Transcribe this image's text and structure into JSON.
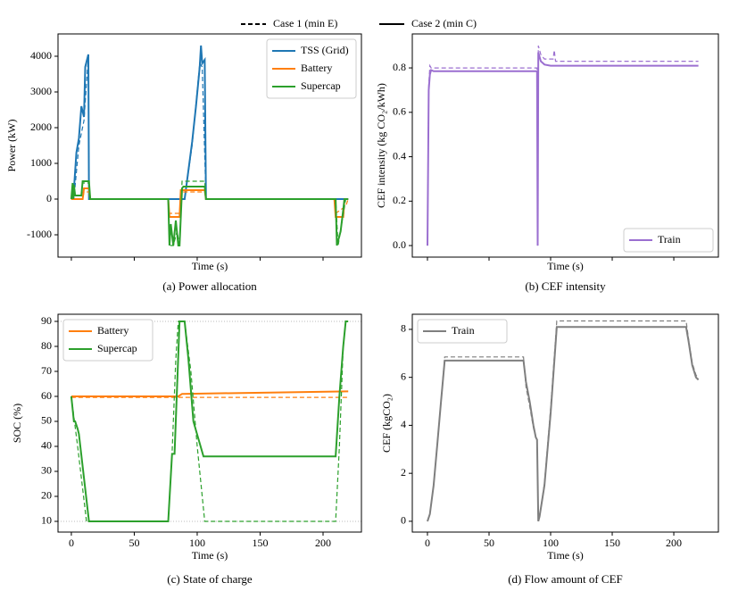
{
  "legend": [
    {
      "label": "Case 1 (min E)",
      "style": "dashed"
    },
    {
      "label": "Case 2 (min C)",
      "style": "solid"
    }
  ],
  "chart_data": [
    {
      "type": "line",
      "caption": "(a) Power allocation",
      "x_label": "Time (s)",
      "y_label": "Power (kW)",
      "xlim": [
        -10.6,
        230.5
      ],
      "xticks": [
        0,
        50,
        100,
        150,
        200
      ],
      "xtick_labels": false,
      "ylim": [
        -1625,
        4625
      ],
      "yticks": [
        -1000,
        0,
        1000,
        2000,
        3000,
        4000
      ],
      "legend_loc": "upper right",
      "series": [
        {
          "name": "TSS (Grid)",
          "color": "#1f77b4",
          "lines": [
            {
              "style": "solid",
              "x": [
                0,
                1.5,
                4,
                6,
                8,
                10,
                11,
                13.5,
                14,
                90,
                93,
                96,
                99,
                102,
                103,
                104,
                106,
                107,
                220
              ],
              "values": [
                0,
                0,
                1300,
                1700,
                2600,
                2300,
                3700,
                4050,
                0,
                0,
                800,
                1600,
                2600,
                3700,
                4300,
                3800,
                3900,
                0,
                0
              ]
            },
            {
              "style": "dashed",
              "x": [
                0,
                2,
                6,
                10,
                13.5,
                14,
                90,
                96,
                102,
                104,
                107,
                220
              ],
              "values": [
                0,
                0,
                1500,
                2200,
                4000,
                0,
                0,
                1500,
                3800,
                3700,
                0,
                0
              ]
            }
          ]
        },
        {
          "name": "Battery",
          "color": "#ff7f0e",
          "lines": [
            {
              "style": "solid",
              "x": [
                0,
                9,
                10,
                14,
                15,
                77,
                78,
                86,
                87,
                106,
                107,
                209,
                210,
                216,
                217,
                220
              ],
              "values": [
                0,
                0,
                300,
                300,
                0,
                0,
                -500,
                -500,
                250,
                250,
                0,
                0,
                -500,
                -500,
                0,
                0
              ]
            },
            {
              "style": "dashed",
              "x": [
                0,
                9,
                10,
                14,
                15,
                77,
                78,
                86,
                87,
                106,
                107,
                209,
                210,
                218,
                220
              ],
              "values": [
                0,
                0,
                200,
                200,
                0,
                0,
                -400,
                -400,
                200,
                200,
                0,
                0,
                -400,
                -200,
                0
              ]
            }
          ]
        },
        {
          "name": "Supercap",
          "color": "#2ca02c",
          "lines": [
            {
              "style": "solid",
              "x": [
                0,
                1,
                1.5,
                2,
                3,
                8,
                9,
                14,
                15,
                77,
                78,
                79,
                81,
                83,
                85,
                86,
                88,
                89,
                106,
                107,
                210,
                211,
                214,
                216,
                217,
                220
              ],
              "values": [
                0,
                450,
                0,
                400,
                100,
                100,
                500,
                500,
                0,
                0,
                -1300,
                -700,
                -1300,
                -600,
                -1300,
                -1300,
                300,
                350,
                350,
                0,
                0,
                -1300,
                -900,
                -300,
                0,
                0
              ]
            },
            {
              "style": "dashed",
              "x": [
                0,
                1,
                2,
                8,
                9,
                14,
                15,
                77,
                78,
                81,
                84,
                86,
                88,
                106,
                107,
                210,
                212,
                218,
                220
              ],
              "values": [
                0,
                400,
                100,
                100,
                450,
                450,
                0,
                0,
                -1300,
                -1300,
                -900,
                -1300,
                500,
                500,
                0,
                0,
                -1300,
                0,
                0
              ]
            }
          ]
        }
      ]
    },
    {
      "type": "line",
      "caption": "(b) CEF intensity",
      "x_label": "Time (s)",
      "y_label": "CEF intensity (kg CO₂/kWh)",
      "xlim": [
        -12.3,
        236.2
      ],
      "xticks": [
        0,
        50,
        100,
        150,
        200
      ],
      "xtick_labels": false,
      "ylim": [
        -0.052,
        0.953
      ],
      "yticks": [
        {
          "value": 0,
          "label": "0.0"
        },
        0.2,
        0.4,
        0.6,
        0.8
      ],
      "legend_loc": "lower right",
      "series": [
        {
          "name": "Train",
          "color": "#9b6fd0",
          "lines": [
            {
              "style": "solid",
              "x": [
                0,
                1,
                2,
                3,
                5,
                7,
                89,
                89.5,
                90,
                92,
                95,
                100,
                105,
                220
              ],
              "values": [
                0,
                0.7,
                0.77,
                0.79,
                0.785,
                0.785,
                0.785,
                0,
                0.87,
                0.83,
                0.815,
                0.81,
                0.81,
                0.81
              ]
            },
            {
              "style": "dashed",
              "x": [
                0,
                1,
                2,
                3,
                5,
                7,
                89,
                89.5,
                90,
                92,
                95,
                102,
                103,
                104,
                220
              ],
              "values": [
                0,
                0.72,
                0.81,
                0.8,
                0.8,
                0.8,
                0.8,
                0,
                0.9,
                0.86,
                0.84,
                0.84,
                0.88,
                0.83,
                0.83
              ]
            }
          ]
        }
      ]
    },
    {
      "type": "line",
      "caption": "(c) State of charge",
      "x_label": "Time (s)",
      "y_label": "SOC (%)",
      "xlim": [
        -10.6,
        230.5
      ],
      "xticks": [
        0,
        50,
        100,
        150,
        200
      ],
      "ylim": [
        5.71,
        92.86
      ],
      "yticks": [
        10,
        20,
        30,
        40,
        50,
        60,
        70,
        80,
        90
      ],
      "reference_lines": [
        10,
        90
      ],
      "legend_loc": "upper left",
      "series": [
        {
          "name": "Battery",
          "color": "#ff7f0e",
          "lines": [
            {
              "style": "solid",
              "x": [
                0,
                85,
                88,
                220
              ],
              "values": [
                60,
                60,
                61,
                62
              ]
            },
            {
              "style": "dashed",
              "x": [
                0,
                220
              ],
              "values": [
                59.6,
                59.6
              ]
            }
          ]
        },
        {
          "name": "Supercap",
          "color": "#2ca02c",
          "lines": [
            {
              "style": "solid",
              "x": [
                0,
                2,
                3,
                5,
                6,
                14,
                77,
                80,
                82,
                86,
                90,
                93,
                97,
                105,
                210,
                213,
                216,
                218,
                220
              ],
              "values": [
                60,
                50,
                50,
                47,
                45,
                10,
                10,
                37,
                37,
                90,
                90,
                75,
                50,
                36,
                36,
                60,
                80,
                90,
                90
              ]
            },
            {
              "style": "dashed",
              "x": [
                0,
                5,
                12,
                77,
                80,
                83,
                85,
                90,
                95,
                100,
                106,
                210,
                213,
                216,
                218,
                220
              ],
              "values": [
                60,
                40,
                10,
                10,
                37,
                75,
                90,
                90,
                70,
                40,
                10,
                10,
                40,
                80,
                90,
                90
              ]
            }
          ]
        }
      ]
    },
    {
      "type": "line",
      "caption": "(d) Flow amount of CEF",
      "x_label": "Time (s)",
      "y_label": "CEF (kgCO₂)",
      "xlim": [
        -12.3,
        236.2
      ],
      "xticks": [
        0,
        50,
        100,
        150,
        200
      ],
      "ylim": [
        -0.45,
        8.63
      ],
      "yticks": [
        0,
        2,
        4,
        6,
        8
      ],
      "legend_loc": "upper left",
      "series": [
        {
          "name": "Train",
          "color": "#7f7f7f",
          "lines": [
            {
              "style": "solid",
              "x": [
                0,
                2,
                5,
                8,
                11,
                14,
                78,
                80,
                83,
                86,
                88,
                89,
                90,
                91,
                95,
                100,
                105,
                210,
                212,
                215,
                218,
                220
              ],
              "values": [
                0,
                0.3,
                1.5,
                3.2,
                5,
                6.7,
                6.7,
                5.8,
                5,
                4,
                3.5,
                3.4,
                0,
                0.2,
                1.5,
                4.5,
                8.1,
                8.1,
                7.5,
                6.5,
                6,
                5.9
              ]
            },
            {
              "style": "dashed",
              "x": [
                0,
                2,
                5,
                8,
                11,
                14,
                78,
                80,
                83,
                86,
                88,
                89,
                90,
                91,
                95,
                100,
                105,
                210,
                212,
                215,
                218,
                220
              ],
              "values": [
                0,
                0.3,
                1.5,
                3.2,
                5,
                6.85,
                6.85,
                5.6,
                4.8,
                3.9,
                3.5,
                3.4,
                0,
                0.2,
                1.6,
                4.7,
                8.35,
                8.35,
                7.6,
                6.6,
                6.1,
                5.95
              ]
            }
          ]
        }
      ]
    }
  ]
}
